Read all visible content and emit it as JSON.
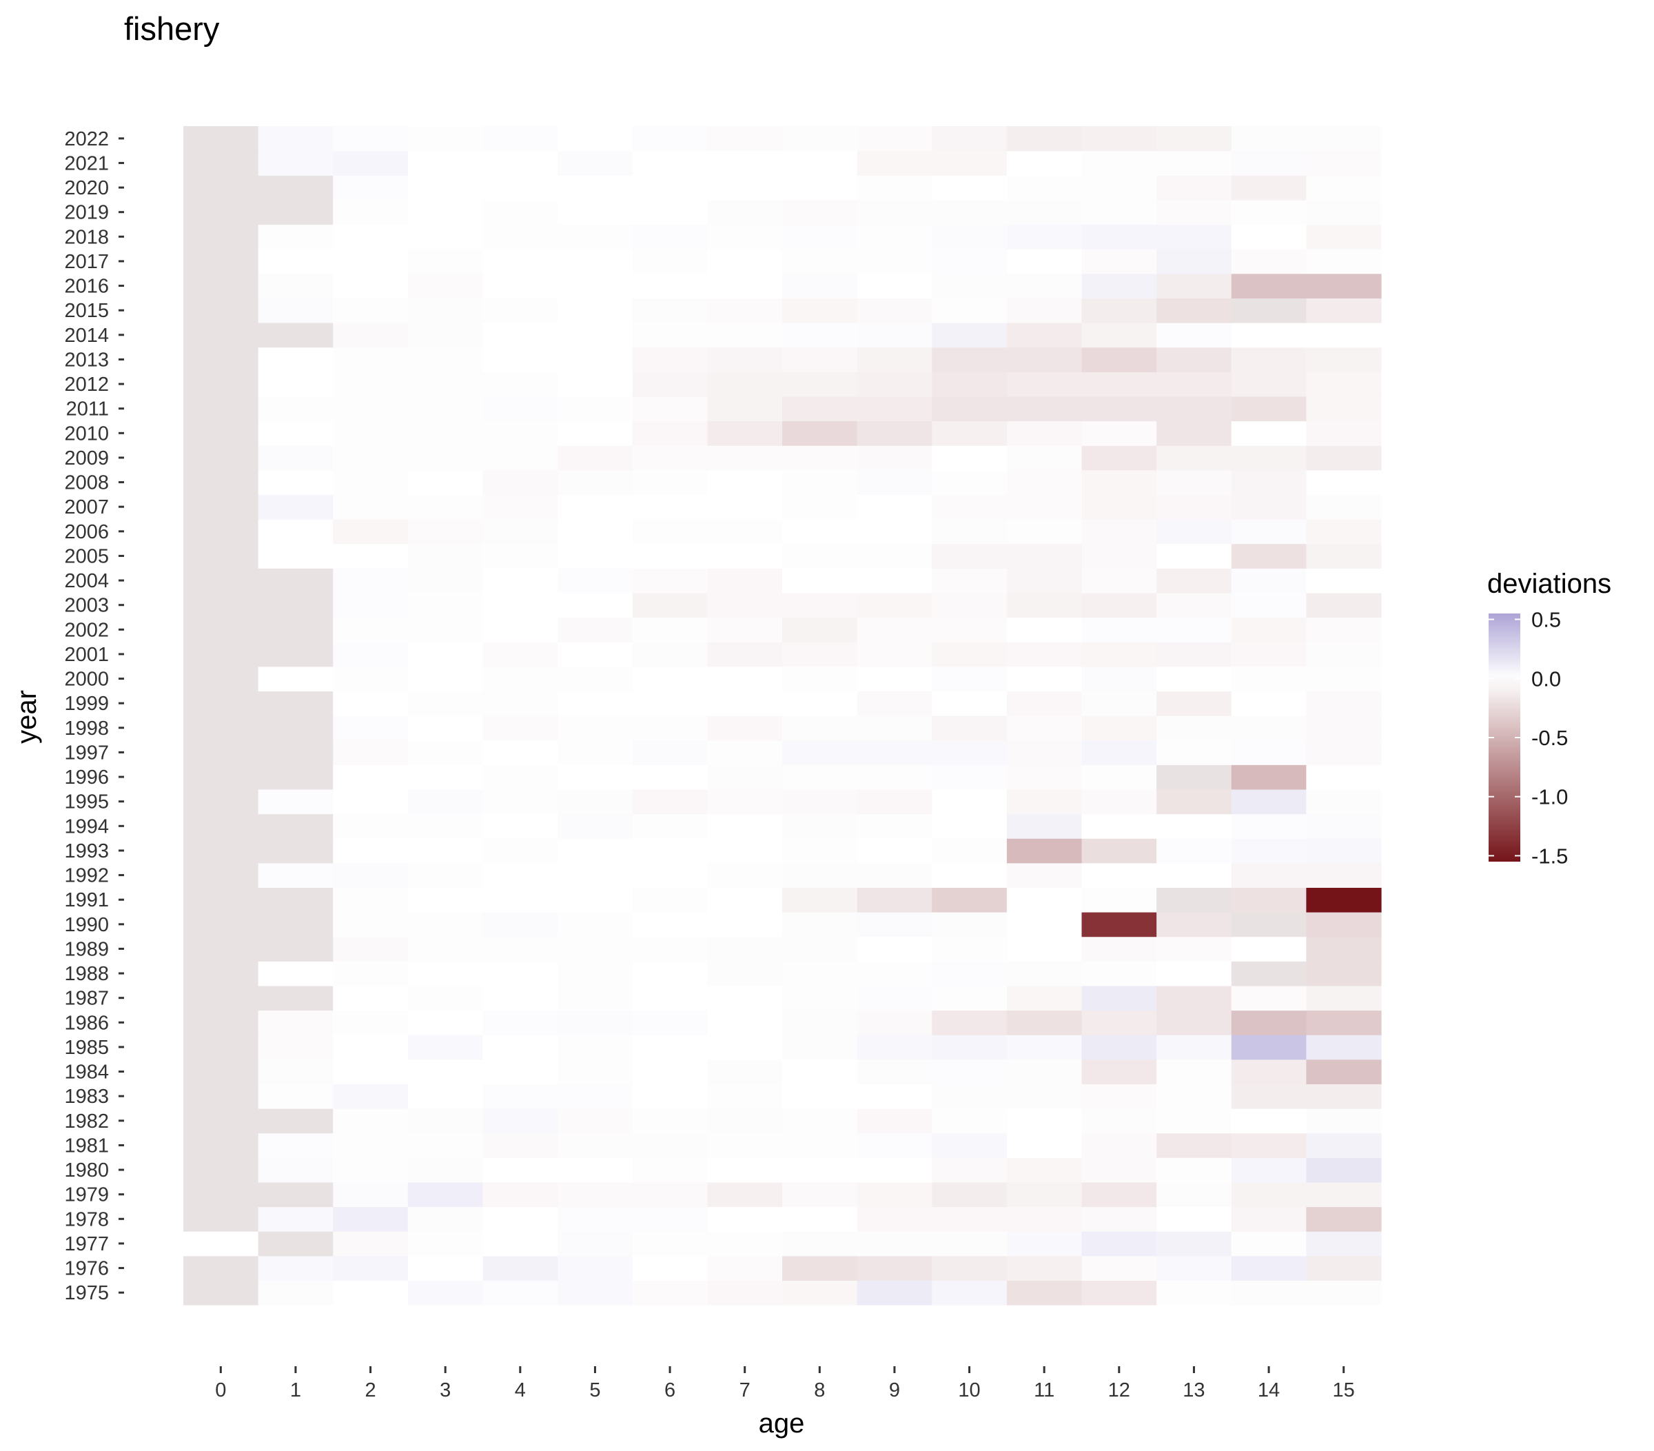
{
  "chart_data": {
    "type": "heatmap",
    "title": "fishery",
    "xlabel": "age",
    "ylabel": "year",
    "x_categories": [
      "0",
      "1",
      "2",
      "3",
      "4",
      "5",
      "6",
      "7",
      "8",
      "9",
      "10",
      "11",
      "12",
      "13",
      "14",
      "15"
    ],
    "y_categories": [
      "1975",
      "1976",
      "1977",
      "1978",
      "1979",
      "1980",
      "1981",
      "1982",
      "1983",
      "1984",
      "1985",
      "1986",
      "1987",
      "1988",
      "1989",
      "1990",
      "1991",
      "1992",
      "1993",
      "1994",
      "1995",
      "1996",
      "1997",
      "1998",
      "1999",
      "2000",
      "2001",
      "2002",
      "2003",
      "2004",
      "2005",
      "2006",
      "2007",
      "2008",
      "2009",
      "2010",
      "2011",
      "2012",
      "2013",
      "2014",
      "2015",
      "2016",
      "2017",
      "2018",
      "2019",
      "2020",
      "2021",
      "2022"
    ],
    "legend": {
      "title": "deviations",
      "ticks": [
        "0.5",
        "0.0",
        "-0.5",
        "-1.0",
        "-1.5"
      ],
      "tick_values": [
        0.5,
        0.0,
        -0.5,
        -1.0,
        -1.5
      ],
      "range": [
        -1.55,
        0.55
      ],
      "colors": {
        "high": "#aea4d6",
        "mid": "#ffffff",
        "low": "#741419"
      },
      "na_color": "#e8e2e2",
      "placement": "right"
    },
    "grid": false,
    "rows": [
      [
        null,
        -0.02,
        0,
        0.04,
        0.02,
        0.04,
        -0.03,
        -0.05,
        -0.06,
        0.12,
        0.06,
        -0.2,
        -0.15,
        0.01,
        -0.02,
        -0.02
      ],
      [
        null,
        0.04,
        0.06,
        0,
        0.08,
        0.04,
        0,
        -0.03,
        -0.2,
        -0.17,
        -0.12,
        -0.1,
        -0.03,
        0.04,
        0.1,
        -0.12
      ],
      [
        0,
        null,
        -0.04,
        -0.01,
        0,
        0.03,
        0.01,
        0.01,
        -0.02,
        -0.02,
        -0.02,
        0.04,
        0.1,
        0.08,
        0.01,
        0.08
      ],
      [
        null,
        0.04,
        0.1,
        -0.02,
        0,
        0.02,
        0.02,
        0,
        0,
        -0.05,
        -0.05,
        -0.05,
        -0.04,
        0,
        -0.07,
        -0.3
      ],
      [
        null,
        null,
        0.03,
        0.1,
        -0.05,
        -0.04,
        -0.04,
        -0.1,
        -0.04,
        -0.06,
        -0.12,
        -0.08,
        -0.15,
        -0.02,
        -0.08,
        -0.08
      ],
      [
        null,
        0.03,
        0.01,
        -0.02,
        0,
        0,
        0.01,
        0,
        0,
        0,
        -0.04,
        -0.06,
        -0.04,
        -0.01,
        0.06,
        0.15
      ],
      [
        null,
        0.02,
        0.01,
        0.01,
        -0.04,
        -0.02,
        -0.02,
        -0.01,
        0.01,
        0.02,
        0.05,
        0,
        -0.04,
        -0.15,
        -0.13,
        0.08
      ],
      [
        null,
        null,
        -0.01,
        -0.02,
        0.04,
        -0.03,
        0.01,
        -0.02,
        -0.01,
        -0.05,
        0.01,
        0,
        -0.02,
        0.01,
        0,
        -0.02
      ],
      [
        null,
        -0.01,
        0.05,
        0,
        0.02,
        0.02,
        0,
        -0.01,
        0,
        0,
        -0.02,
        -0.02,
        -0.03,
        0.01,
        -0.12,
        -0.12
      ],
      [
        null,
        -0.02,
        0,
        0,
        0,
        0.01,
        0,
        -0.02,
        0,
        -0.02,
        0.02,
        -0.02,
        -0.15,
        -0.01,
        -0.13,
        -0.4
      ],
      [
        null,
        -0.03,
        0,
        0.04,
        0,
        0.01,
        0,
        0,
        -0.02,
        0.05,
        0.06,
        0.04,
        0.12,
        0.05,
        0.35,
        0.12
      ],
      [
        null,
        -0.03,
        -0.01,
        0,
        0.02,
        0.03,
        0.02,
        0,
        -0.02,
        -0.04,
        -0.15,
        -0.2,
        -0.13,
        -0.17,
        -0.4,
        -0.35
      ],
      [
        null,
        null,
        0,
        -0.01,
        0,
        0.01,
        0,
        0,
        0.01,
        0.02,
        0.01,
        -0.06,
        0.12,
        -0.17,
        -0.03,
        -0.08
      ],
      [
        null,
        0,
        -0.01,
        0,
        0,
        0.01,
        0,
        -0.02,
        0.01,
        0.01,
        0.02,
        -0.02,
        -0.01,
        0,
        null,
        -0.22
      ],
      [
        null,
        null,
        -0.04,
        -0.01,
        0.01,
        0.01,
        -0.01,
        -0.02,
        -0.02,
        0,
        -0.01,
        0,
        -0.04,
        -0.03,
        0,
        -0.22
      ],
      [
        null,
        null,
        0.01,
        0.01,
        0.03,
        0.01,
        0,
        0,
        -0.02,
        0.03,
        -0.02,
        0,
        -1.35,
        -0.17,
        null,
        -0.25
      ],
      [
        null,
        null,
        -0.01,
        0,
        0,
        0,
        0.01,
        0,
        -0.08,
        -0.17,
        -0.3,
        0,
        0.01,
        null,
        -0.2,
        -1.55
      ],
      [
        null,
        0.02,
        0.03,
        0.01,
        0,
        0,
        0,
        -0.01,
        -0.02,
        -0.02,
        0,
        -0.04,
        0,
        0,
        -0.07,
        -0.07
      ],
      [
        null,
        null,
        0,
        0,
        0.01,
        0,
        0,
        0,
        0.01,
        0,
        0.01,
        -0.45,
        -0.22,
        0.02,
        0.04,
        0.05
      ],
      [
        null,
        null,
        -0.01,
        -0.01,
        0,
        0.03,
        0.01,
        0,
        -0.02,
        0.01,
        0,
        0.08,
        0,
        0,
        0.02,
        0.03
      ],
      [
        null,
        0.02,
        0,
        0.03,
        -0.01,
        -0.02,
        -0.05,
        -0.03,
        -0.04,
        -0.05,
        0,
        -0.06,
        -0.04,
        -0.18,
        0.12,
        -0.02
      ],
      [
        null,
        null,
        0,
        0,
        0.01,
        0,
        0,
        -0.02,
        0.01,
        0.01,
        0.02,
        -0.03,
        0.01,
        null,
        -0.45,
        0
      ],
      [
        null,
        null,
        -0.03,
        -0.01,
        0,
        0.01,
        0.03,
        0.01,
        0.04,
        0.04,
        0.04,
        -0.04,
        0.06,
        0.01,
        0.02,
        -0.04
      ],
      [
        null,
        null,
        0.02,
        0,
        -0.03,
        -0.01,
        -0.01,
        -0.05,
        -0.02,
        -0.02,
        -0.07,
        -0.03,
        -0.06,
        -0.02,
        -0.02,
        -0.04
      ],
      [
        null,
        null,
        0,
        0.01,
        0.01,
        0,
        0,
        0,
        0,
        -0.04,
        0,
        -0.05,
        -0.02,
        -0.1,
        0,
        -0.04
      ],
      [
        null,
        0,
        -0.01,
        0,
        0.01,
        0.01,
        0,
        0,
        0.01,
        0,
        0.02,
        0,
        0.03,
        0,
        0.01,
        0.01
      ],
      [
        null,
        null,
        0.02,
        0,
        -0.03,
        0,
        -0.02,
        -0.07,
        -0.05,
        -0.03,
        -0.06,
        -0.05,
        -0.06,
        -0.07,
        -0.05,
        -0.02
      ],
      [
        null,
        null,
        0.01,
        0.01,
        0,
        -0.04,
        -0.01,
        -0.03,
        -0.08,
        -0.03,
        -0.03,
        0,
        0.02,
        0.02,
        -0.06,
        -0.03
      ],
      [
        null,
        null,
        0.02,
        -0.01,
        0,
        0,
        -0.08,
        -0.05,
        -0.05,
        -0.06,
        -0.04,
        -0.08,
        -0.1,
        -0.04,
        0.02,
        -0.12
      ],
      [
        null,
        null,
        0.02,
        -0.02,
        0,
        0.02,
        -0.03,
        -0.05,
        0,
        0,
        -0.03,
        -0.07,
        -0.03,
        -0.1,
        0.03,
        0
      ],
      [
        null,
        0,
        0,
        -0.02,
        -0.01,
        0,
        0,
        0,
        -0.01,
        -0.01,
        -0.07,
        -0.07,
        -0.04,
        0,
        -0.2,
        -0.08
      ],
      [
        null,
        0,
        -0.06,
        -0.03,
        -0.02,
        0,
        0.01,
        0.01,
        0,
        0,
        -0.02,
        -0.01,
        -0.04,
        0.05,
        0.03,
        -0.06
      ],
      [
        null,
        0.06,
        0.01,
        -0.01,
        -0.03,
        0,
        0,
        0,
        0.01,
        0,
        -0.03,
        -0.03,
        -0.06,
        -0.05,
        -0.07,
        -0.02
      ],
      [
        null,
        0,
        0.01,
        0,
        -0.04,
        -0.02,
        -0.01,
        0,
        0.01,
        0.03,
        0.01,
        -0.03,
        -0.06,
        -0.04,
        -0.07,
        0
      ],
      [
        null,
        0.03,
        -0.01,
        0.01,
        0.01,
        -0.05,
        -0.03,
        -0.03,
        -0.03,
        -0.04,
        0,
        -0.02,
        -0.15,
        -0.08,
        -0.08,
        -0.12
      ],
      [
        null,
        0,
        0.01,
        0.01,
        0.01,
        0,
        -0.05,
        -0.13,
        -0.25,
        -0.17,
        -0.1,
        -0.05,
        -0.03,
        -0.17,
        0,
        -0.05
      ],
      [
        null,
        0.01,
        0.01,
        0.01,
        0.02,
        -0.01,
        -0.03,
        -0.08,
        -0.13,
        -0.13,
        -0.17,
        -0.17,
        -0.17,
        -0.17,
        -0.2,
        -0.06
      ],
      [
        null,
        0,
        0.01,
        0.01,
        0.01,
        0,
        -0.07,
        -0.08,
        -0.08,
        -0.1,
        -0.15,
        -0.13,
        -0.13,
        -0.13,
        -0.1,
        -0.06
      ],
      [
        null,
        0,
        0.01,
        0.01,
        0,
        0,
        -0.05,
        -0.07,
        -0.05,
        -0.08,
        -0.17,
        -0.17,
        -0.25,
        -0.17,
        -0.1,
        -0.08
      ],
      [
        null,
        null,
        -0.04,
        -0.02,
        0,
        0,
        0.01,
        0.01,
        0.02,
        0.03,
        0.08,
        -0.13,
        -0.08,
        0.02,
        0,
        0
      ],
      [
        null,
        0.03,
        0.01,
        -0.02,
        -0.01,
        0,
        -0.02,
        -0.03,
        -0.06,
        -0.04,
        -0.01,
        -0.04,
        -0.12,
        -0.2,
        null,
        -0.13
      ],
      [
        null,
        -0.02,
        0,
        -0.03,
        0,
        0,
        0,
        0,
        0.03,
        0,
        -0.02,
        -0.02,
        0.08,
        -0.12,
        -0.4,
        -0.4
      ],
      [
        null,
        0,
        0,
        0.01,
        0,
        0,
        -0.01,
        0,
        0.01,
        -0.01,
        0.02,
        0,
        -0.03,
        0.07,
        -0.03,
        0.01
      ],
      [
        null,
        -0.01,
        0,
        0,
        0.01,
        0.01,
        0.02,
        0.01,
        0.02,
        0.01,
        0.03,
        0.04,
        0.06,
        0.06,
        0,
        -0.06
      ],
      [
        null,
        null,
        0.01,
        0,
        -0.01,
        0,
        0,
        -0.02,
        -0.03,
        -0.02,
        -0.02,
        -0.02,
        -0.01,
        -0.03,
        -0.01,
        -0.02
      ],
      [
        null,
        null,
        0.02,
        0,
        0,
        0,
        0,
        0,
        0,
        0.01,
        0,
        -0.01,
        0.01,
        -0.05,
        -0.1,
        -0.01
      ],
      [
        null,
        0.04,
        0.06,
        0,
        0,
        0.03,
        0,
        0,
        0,
        -0.06,
        -0.06,
        0,
        0.01,
        0.01,
        0.03,
        -0.03
      ],
      [
        null,
        0.04,
        0.02,
        0.01,
        0.02,
        0,
        0.02,
        -0.03,
        -0.02,
        -0.03,
        -0.07,
        -0.11,
        -0.1,
        -0.08,
        -0.02,
        -0.02
      ]
    ]
  }
}
